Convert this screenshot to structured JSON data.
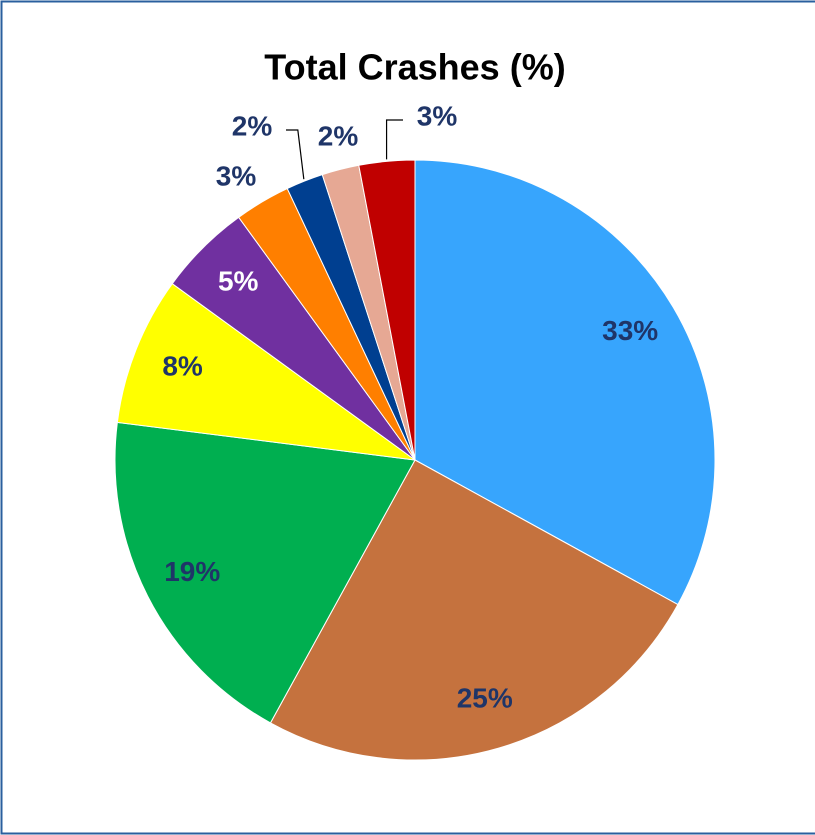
{
  "chart_data": {
    "type": "pie",
    "title": "Total Crashes (%)",
    "values": [
      33,
      25,
      19,
      8,
      5,
      3,
      2,
      2,
      3
    ],
    "value_labels": [
      "33%",
      "25%",
      "19%",
      "8%",
      "5%",
      "3%",
      "2%",
      "2%",
      "3%"
    ],
    "colors": [
      "#37a5fd",
      "#c5723e",
      "#00af50",
      "#ffff00",
      "#7030a0",
      "#ff7f00",
      "#003f90",
      "#e6a894",
      "#c00000"
    ],
    "label_colors": [
      "#1f3568",
      "#1f3568",
      "#1f3568",
      "#1f3568",
      "#ffffff",
      "#1f3568",
      "#1f3568",
      "#1f3568",
      "#1f3568"
    ]
  }
}
